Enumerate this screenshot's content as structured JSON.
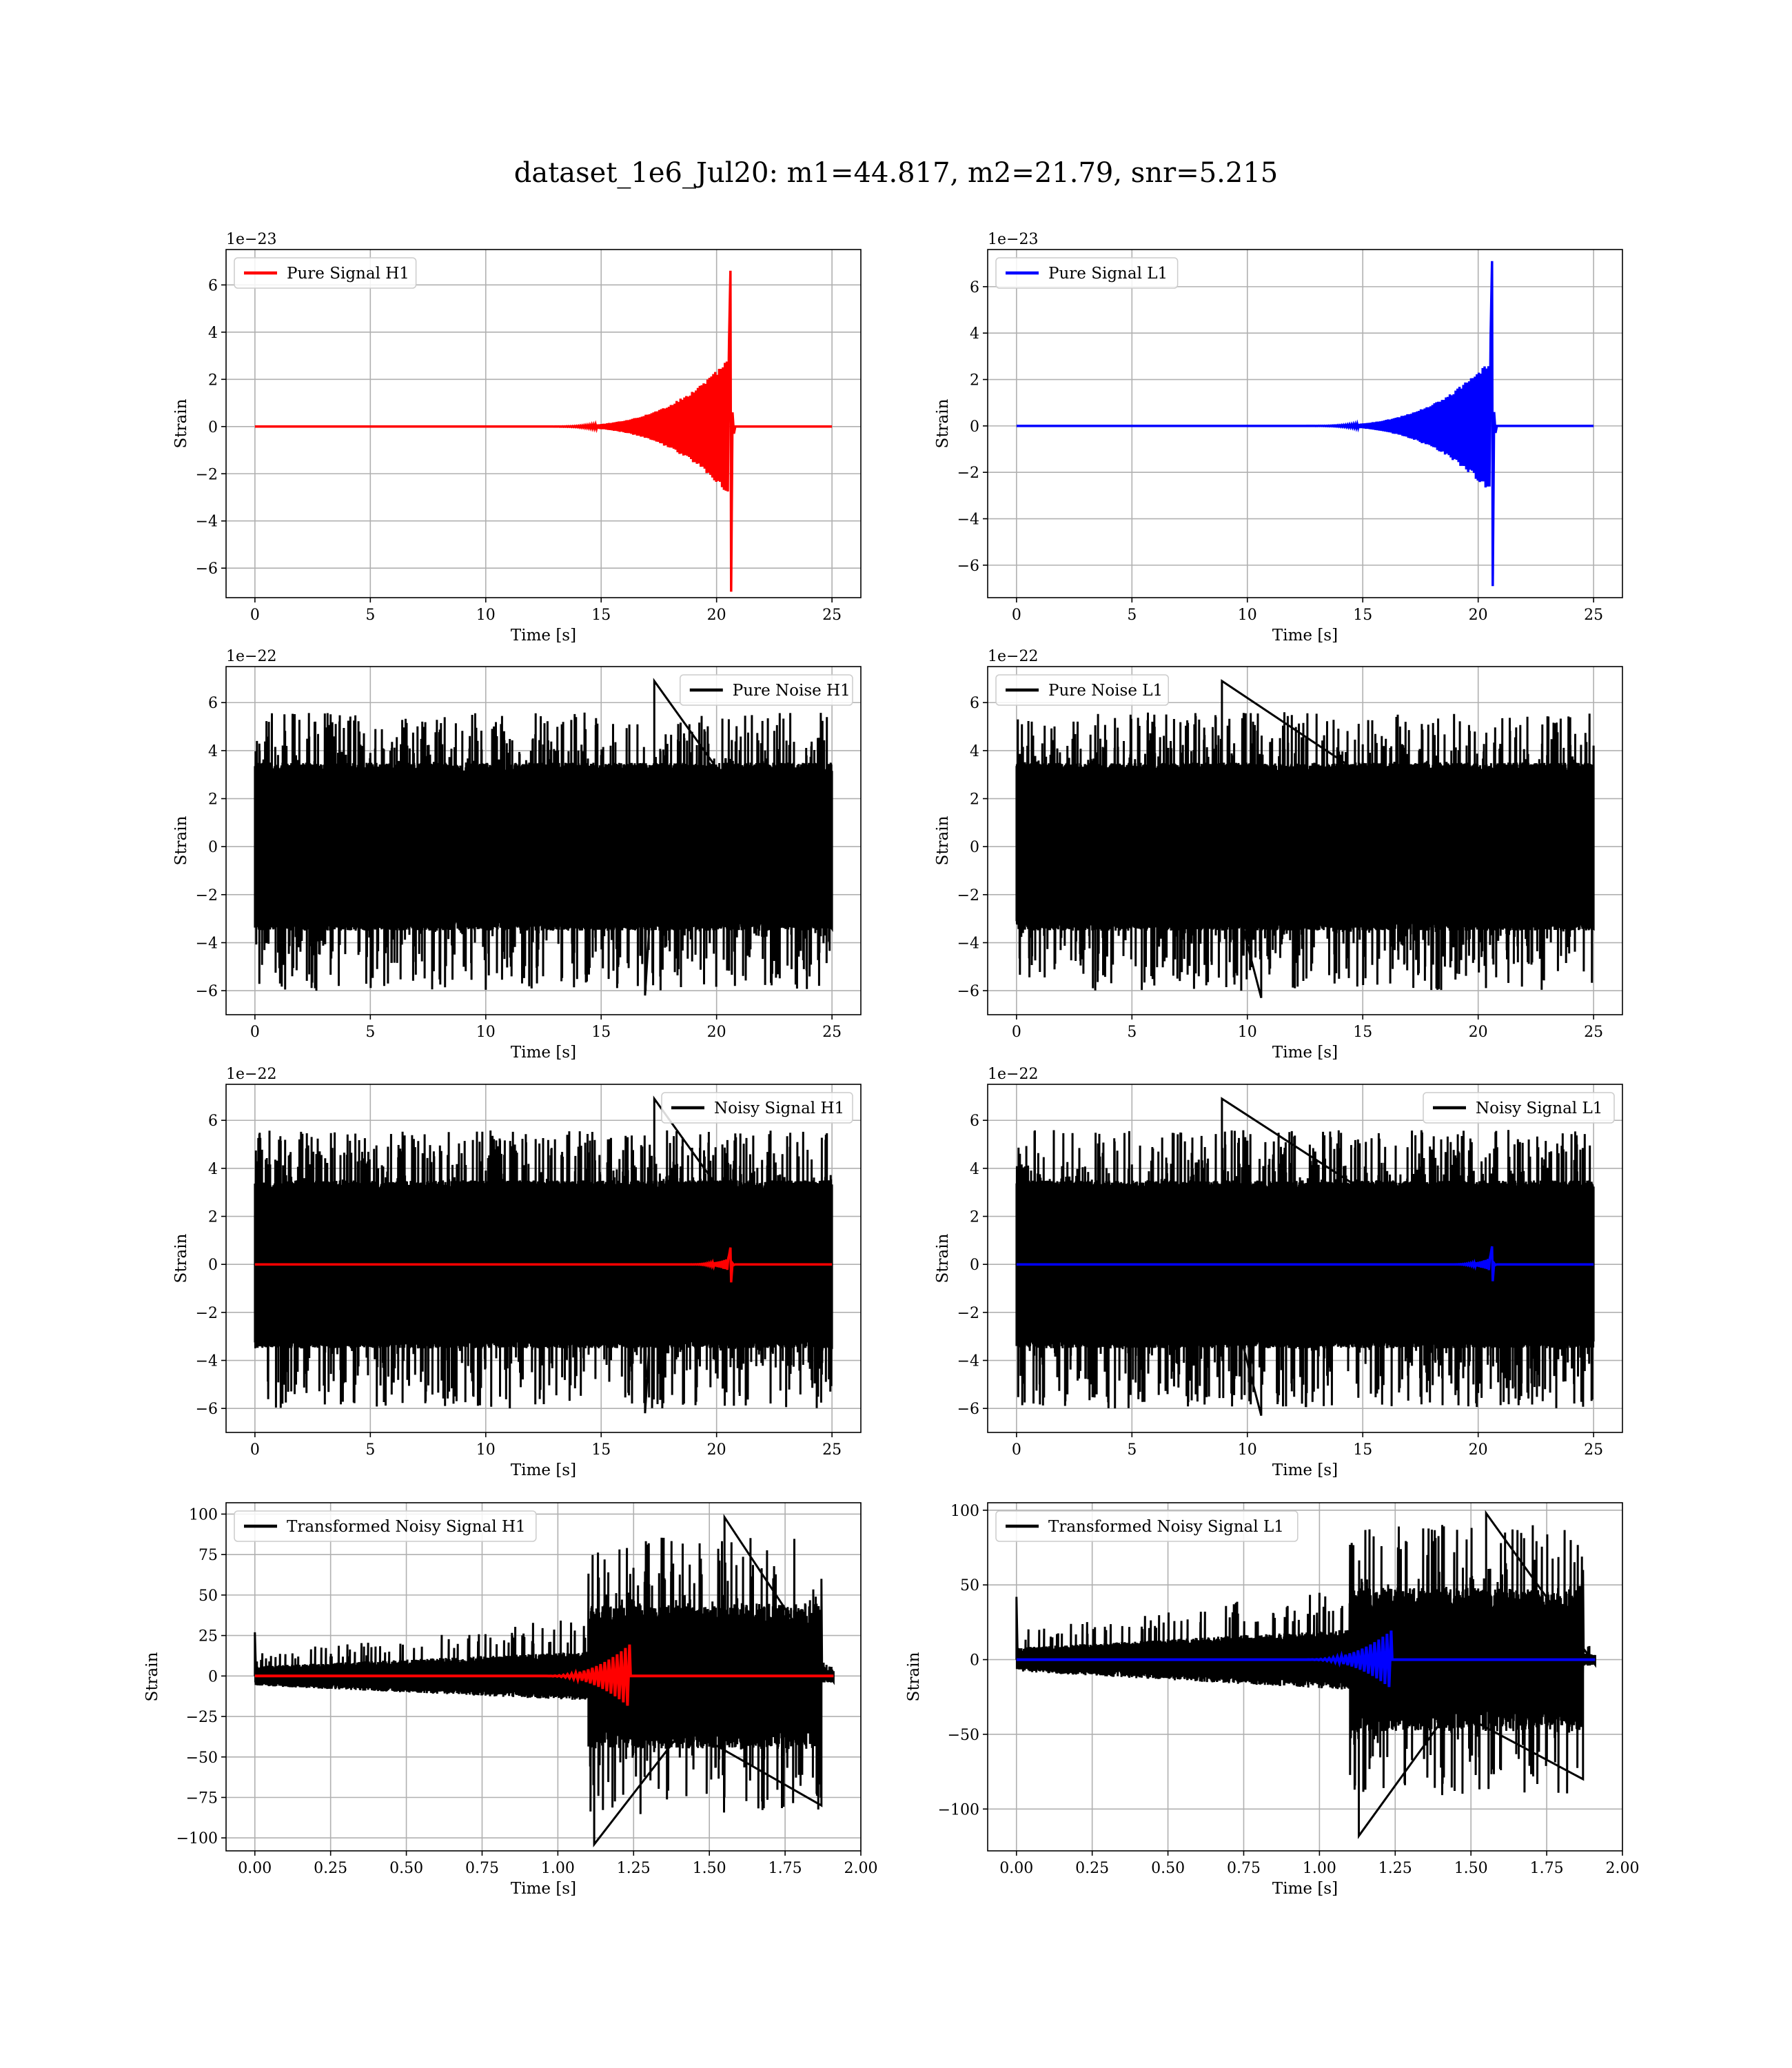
{
  "title": "dataset_1e6_Jul20: m1=44.817, m2=21.79, snr=5.215",
  "colors": {
    "H1": "#ff0000",
    "L1": "#0000ff",
    "noise": "#000000",
    "grid": "#b0b0b0"
  },
  "chart_data": [
    {
      "type": "line",
      "detector": "H1",
      "xlabel": "Time [s]",
      "ylabel": "Strain",
      "offset_text": "1e−23",
      "xlim": [
        -1.25,
        26.25
      ],
      "ylim": [
        -7.25,
        7.5
      ],
      "xticks": [
        0,
        5,
        10,
        15,
        20,
        25
      ],
      "xtick_labels": [
        "0",
        "5",
        "10",
        "15",
        "20",
        "25"
      ],
      "yticks": [
        -6,
        -4,
        -2,
        0,
        2,
        4,
        6
      ],
      "ytick_labels": [
        "−6",
        "−4",
        "−2",
        "0",
        "2",
        "4",
        "6"
      ],
      "grid": true,
      "legend_loc": "upper left",
      "series": [
        {
          "name": "Pure Signal H1",
          "color": "#ff0000",
          "kind": "chirp",
          "x_range": [
            0,
            25
          ],
          "merger_x": 20.6,
          "start_x": 12,
          "peak_pos": 6.6,
          "peak_neg": -7.0,
          "pre_merger_amp": 3.0,
          "ringdown_amp": 0.6
        }
      ]
    },
    {
      "type": "line",
      "detector": "L1",
      "xlabel": "Time [s]",
      "ylabel": "Strain",
      "offset_text": "1e−23",
      "xlim": [
        -1.25,
        26.25
      ],
      "ylim": [
        -7.4,
        7.6
      ],
      "xticks": [
        0,
        5,
        10,
        15,
        20,
        25
      ],
      "xtick_labels": [
        "0",
        "5",
        "10",
        "15",
        "20",
        "25"
      ],
      "yticks": [
        -6,
        -4,
        -2,
        0,
        2,
        4,
        6
      ],
      "ytick_labels": [
        "−6",
        "−4",
        "−2",
        "0",
        "2",
        "4",
        "6"
      ],
      "grid": true,
      "legend_loc": "upper left",
      "series": [
        {
          "name": "Pure Signal L1",
          "color": "#0000ff",
          "kind": "chirp",
          "x_range": [
            0,
            25
          ],
          "merger_x": 20.6,
          "start_x": 12,
          "peak_pos": 7.1,
          "peak_neg": -6.9,
          "pre_merger_amp": 3.0,
          "ringdown_amp": 0.6
        }
      ]
    },
    {
      "type": "line",
      "detector": "H1",
      "xlabel": "Time [s]",
      "ylabel": "Strain",
      "offset_text": "1e−22",
      "xlim": [
        -1.25,
        26.25
      ],
      "ylim": [
        -7.0,
        7.5
      ],
      "xticks": [
        0,
        5,
        10,
        15,
        20,
        25
      ],
      "xtick_labels": [
        "0",
        "5",
        "10",
        "15",
        "20",
        "25"
      ],
      "yticks": [
        -6,
        -4,
        -2,
        0,
        2,
        4,
        6
      ],
      "ytick_labels": [
        "−6",
        "−4",
        "−2",
        "0",
        "2",
        "4",
        "6"
      ],
      "grid": true,
      "legend_loc": "upper right",
      "series": [
        {
          "name": "Pure Noise H1",
          "color": "#000000",
          "kind": "noise",
          "x_range": [
            0,
            25
          ],
          "band": 3.5,
          "spike_max": 5.6,
          "spike_min": -6.0,
          "max_spike_x": 17.3,
          "max_spike_y": 6.9,
          "min_spike_x": 16.9,
          "min_spike_y": -6.2
        }
      ]
    },
    {
      "type": "line",
      "detector": "L1",
      "xlabel": "Time [s]",
      "ylabel": "Strain",
      "offset_text": "1e−22",
      "xlim": [
        -1.25,
        26.25
      ],
      "ylim": [
        -7.0,
        7.5
      ],
      "xticks": [
        0,
        5,
        10,
        15,
        20,
        25
      ],
      "xtick_labels": [
        "0",
        "5",
        "10",
        "15",
        "20",
        "25"
      ],
      "yticks": [
        -6,
        -4,
        -2,
        0,
        2,
        4,
        6
      ],
      "ytick_labels": [
        "−6",
        "−4",
        "−2",
        "0",
        "2",
        "4",
        "6"
      ],
      "grid": true,
      "legend_loc": "upper left",
      "series": [
        {
          "name": "Pure Noise L1",
          "color": "#000000",
          "kind": "noise",
          "x_range": [
            0,
            25
          ],
          "band": 3.5,
          "spike_max": 5.6,
          "spike_min": -6.0,
          "max_spike_x": 8.9,
          "max_spike_y": 6.9,
          "min_spike_x": 10.6,
          "min_spike_y": -6.3
        }
      ]
    },
    {
      "type": "line",
      "detector": "H1",
      "xlabel": "Time [s]",
      "ylabel": "Strain",
      "offset_text": "1e−22",
      "xlim": [
        -1.25,
        26.25
      ],
      "ylim": [
        -7.0,
        7.5
      ],
      "xticks": [
        0,
        5,
        10,
        15,
        20,
        25
      ],
      "xtick_labels": [
        "0",
        "5",
        "10",
        "15",
        "20",
        "25"
      ],
      "yticks": [
        -6,
        -4,
        -2,
        0,
        2,
        4,
        6
      ],
      "ytick_labels": [
        "−6",
        "−4",
        "−2",
        "0",
        "2",
        "4",
        "6"
      ],
      "grid": true,
      "legend_loc": "upper right",
      "series": [
        {
          "name": "Noisy Signal H1",
          "color": "#000000",
          "kind": "noise",
          "x_range": [
            0,
            25
          ],
          "band": 3.5,
          "spike_max": 5.6,
          "spike_min": -6.0,
          "max_spike_x": 17.3,
          "max_spike_y": 6.9,
          "min_spike_x": 16.9,
          "min_spike_y": -6.2
        },
        {
          "color": "#ff0000",
          "kind": "chirp",
          "x_range": [
            0,
            25
          ],
          "merger_x": 20.6,
          "start_x": 18.5,
          "peak_pos": 0.7,
          "peak_neg": -0.75,
          "pre_merger_amp": 0.3,
          "ringdown_amp": 0.05
        }
      ]
    },
    {
      "type": "line",
      "detector": "L1",
      "xlabel": "Time [s]",
      "ylabel": "Strain",
      "offset_text": "1e−22",
      "xlim": [
        -1.25,
        26.25
      ],
      "ylim": [
        -7.0,
        7.5
      ],
      "xticks": [
        0,
        5,
        10,
        15,
        20,
        25
      ],
      "xtick_labels": [
        "0",
        "5",
        "10",
        "15",
        "20",
        "25"
      ],
      "yticks": [
        -6,
        -4,
        -2,
        0,
        2,
        4,
        6
      ],
      "ytick_labels": [
        "−6",
        "−4",
        "−2",
        "0",
        "2",
        "4",
        "6"
      ],
      "grid": true,
      "legend_loc": "upper right",
      "series": [
        {
          "name": "Noisy Signal L1",
          "color": "#000000",
          "kind": "noise",
          "x_range": [
            0,
            25
          ],
          "band": 3.5,
          "spike_max": 5.6,
          "spike_min": -6.0,
          "max_spike_x": 8.9,
          "max_spike_y": 6.9,
          "min_spike_x": 10.6,
          "min_spike_y": -6.3
        },
        {
          "color": "#0000ff",
          "kind": "chirp",
          "x_range": [
            0,
            25
          ],
          "merger_x": 20.6,
          "start_x": 18.5,
          "peak_pos": 0.75,
          "peak_neg": -0.7,
          "pre_merger_amp": 0.3,
          "ringdown_amp": 0.05
        }
      ]
    },
    {
      "type": "line",
      "detector": "H1",
      "xlabel": "Time [s]",
      "ylabel": "Strain",
      "offset_text": "",
      "xlim": [
        -0.095,
        2.0
      ],
      "ylim": [
        -108,
        107
      ],
      "xticks": [
        0,
        0.25,
        0.5,
        0.75,
        1.0,
        1.25,
        1.5,
        1.75,
        2.0
      ],
      "xtick_labels": [
        "0.00",
        "0.25",
        "0.50",
        "0.75",
        "1.00",
        "1.25",
        "1.50",
        "1.75",
        "2.00"
      ],
      "yticks": [
        -100,
        -75,
        -50,
        -25,
        0,
        25,
        50,
        75,
        100
      ],
      "ytick_labels": [
        "−100",
        "−75",
        "−50",
        "−25",
        "0",
        "25",
        "50",
        "75",
        "100"
      ],
      "grid": true,
      "legend_loc": "upper left",
      "series": [
        {
          "name": "Transformed Noisy Signal H1",
          "color": "#000000",
          "kind": "transformed",
          "x_range": [
            0,
            1.91
          ],
          "pre_amp": 6,
          "post_amp": 45,
          "step_x": 1.1,
          "cut_x": 1.87,
          "spike_start": 27,
          "max_spike_x": 1.55,
          "max_spike_y": 98,
          "min_spike_x": 1.12,
          "min_spike_y": -104
        },
        {
          "color": "#ff0000",
          "kind": "chirp_small",
          "x_range": [
            0,
            1.91
          ],
          "merger_x": 1.24,
          "start_x": 0.95,
          "peak": 20
        }
      ]
    },
    {
      "type": "line",
      "detector": "L1",
      "xlabel": "Time [s]",
      "ylabel": "Strain",
      "offset_text": "",
      "xlim": [
        -0.095,
        2.0
      ],
      "ylim": [
        -128,
        105
      ],
      "xticks": [
        0,
        0.25,
        0.5,
        0.75,
        1.0,
        1.25,
        1.5,
        1.75,
        2.0
      ],
      "xtick_labels": [
        "0.00",
        "0.25",
        "0.50",
        "0.75",
        "1.00",
        "1.25",
        "1.50",
        "1.75",
        "2.00"
      ],
      "yticks": [
        -100,
        -50,
        0,
        50,
        100
      ],
      "ytick_labels": [
        "−100",
        "−50",
        "0",
        "50",
        "100"
      ],
      "grid": true,
      "legend_loc": "upper left",
      "series": [
        {
          "name": "Transformed Noisy Signal L1",
          "color": "#000000",
          "kind": "transformed",
          "x_range": [
            0,
            1.91
          ],
          "pre_amp": 8,
          "post_amp": 48,
          "step_x": 1.1,
          "cut_x": 1.87,
          "spike_start": 42,
          "max_spike_x": 1.55,
          "max_spike_y": 98,
          "min_spike_x": 1.13,
          "min_spike_y": -118
        },
        {
          "color": "#0000ff",
          "kind": "chirp_small",
          "x_range": [
            0,
            1.91
          ],
          "merger_x": 1.24,
          "start_x": 0.95,
          "peak": 20
        }
      ]
    }
  ]
}
